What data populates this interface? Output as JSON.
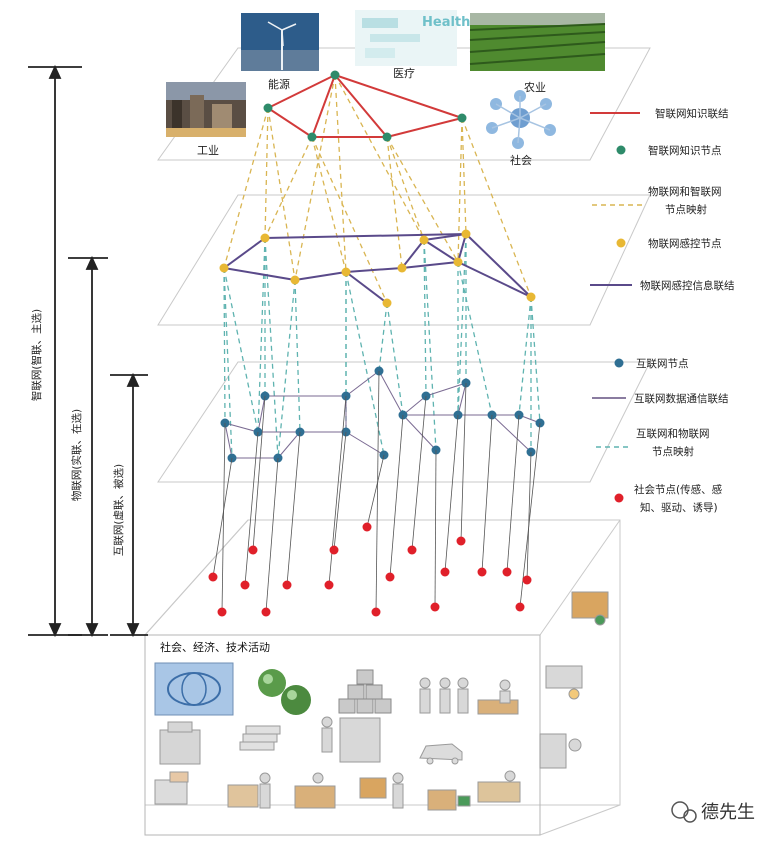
{
  "sectors": {
    "energy": "能源",
    "medical": "医疗",
    "agriculture": "农业",
    "industry": "工业",
    "society": "社会",
    "health_photo_text": "Health"
  },
  "legend": {
    "knowledge_link": "智联网知识联结",
    "knowledge_node": "智联网知识节点",
    "iot_iin_map_1": "物联网和智联网",
    "iot_iin_map_2": "节点映射",
    "iot_sensor_node": "物联网感控节点",
    "iot_sensor_link": "物联网感控信息联结",
    "internet_node": "互联网节点",
    "internet_link": "互联网数据通信联结",
    "inet_iot_map_1": "互联网和物联网",
    "inet_iot_map_2": "节点映射",
    "social_node_1": "社会节点(传感、感",
    "social_node_2": "知、驱动、诱导)"
  },
  "brackets": {
    "iin": "智联网(智联、主选)",
    "iot": "物联网(实联、在选)",
    "internet": "互联网(虚联、被选)"
  },
  "box_title": "社会、经济、技术活动",
  "watermark": "德先生",
  "colors": {
    "knowledge": "#d23a3a",
    "knowledge_node": "#2e8b6a",
    "mapping_yellow": "#d9b552",
    "sensor_node": "#e8b834",
    "sensor_link": "#5a4a8a",
    "internet_node": "#2f6f93",
    "internet_link": "#7a6a92",
    "mapping_teal": "#5fb3b0",
    "social_node": "#e0202a"
  }
}
